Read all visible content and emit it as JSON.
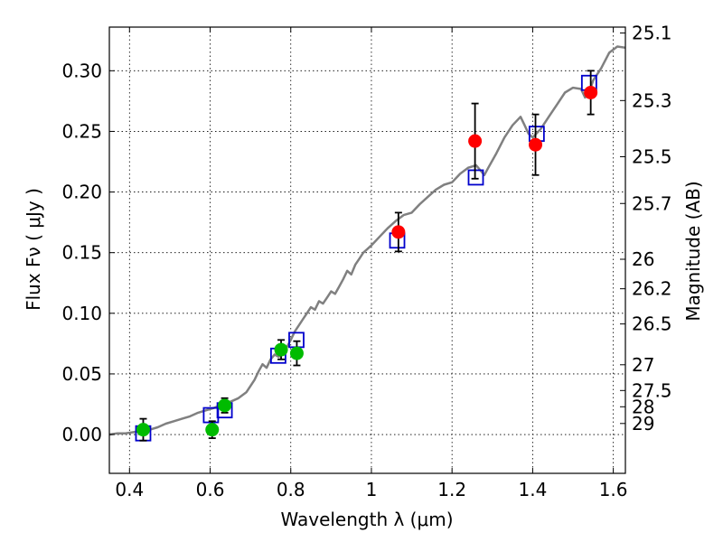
{
  "chart_data": {
    "type": "scatter",
    "title": "",
    "xlabel": "Wavelength  λ (μm)",
    "ylabel": "Flux  Fν  ( μJy )",
    "y2label": "Magnitude (AB)",
    "xlim": [
      0.35,
      1.63
    ],
    "ylim": [
      -0.032,
      0.336
    ],
    "grid": true,
    "x_ticks": [
      0.4,
      0.6,
      0.8,
      1.0,
      1.2,
      1.4,
      1.6
    ],
    "x_tick_labels": [
      "0.4",
      "0.6",
      "0.8",
      "1",
      "1.2",
      "1.4",
      "1.6"
    ],
    "y_ticks": [
      0.0,
      0.05,
      0.1,
      0.15,
      0.2,
      0.25,
      0.3
    ],
    "y_tick_labels": [
      "0.00",
      "0.05",
      "0.10",
      "0.15",
      "0.20",
      "0.25",
      "0.30"
    ],
    "mag_ticks": [
      "25.1",
      "25.3",
      "25.5",
      "25.7",
      "26",
      "26.2",
      "26.5",
      "27",
      "27.5",
      "28",
      "29"
    ],
    "colors": {
      "model": "#808080",
      "model_box": "#0000cc",
      "optical": "#00bb00",
      "nir": "#ff0000",
      "errorbar": "#000000"
    },
    "series": [
      {
        "name": "model spectrum",
        "kind": "line",
        "x": [
          0.35,
          0.37,
          0.39,
          0.41,
          0.43,
          0.45,
          0.47,
          0.49,
          0.51,
          0.53,
          0.55,
          0.57,
          0.59,
          0.61,
          0.63,
          0.65,
          0.67,
          0.69,
          0.71,
          0.72,
          0.73,
          0.74,
          0.75,
          0.76,
          0.77,
          0.78,
          0.79,
          0.8,
          0.81,
          0.82,
          0.83,
          0.84,
          0.85,
          0.86,
          0.87,
          0.88,
          0.89,
          0.9,
          0.91,
          0.92,
          0.93,
          0.94,
          0.95,
          0.96,
          0.97,
          0.98,
          0.99,
          1.0,
          1.02,
          1.04,
          1.06,
          1.08,
          1.1,
          1.12,
          1.14,
          1.16,
          1.18,
          1.2,
          1.22,
          1.24,
          1.26,
          1.28,
          1.29,
          1.31,
          1.33,
          1.35,
          1.37,
          1.38,
          1.39,
          1.4,
          1.42,
          1.44,
          1.46,
          1.48,
          1.5,
          1.52,
          1.53,
          1.54,
          1.55,
          1.57,
          1.59,
          1.61,
          1.63
        ],
        "y": [
          0.0,
          0.001,
          0.001,
          0.002,
          0.003,
          0.004,
          0.006,
          0.009,
          0.011,
          0.013,
          0.015,
          0.018,
          0.02,
          0.022,
          0.025,
          0.027,
          0.03,
          0.035,
          0.045,
          0.052,
          0.058,
          0.055,
          0.062,
          0.066,
          0.064,
          0.068,
          0.072,
          0.078,
          0.085,
          0.09,
          0.095,
          0.1,
          0.105,
          0.103,
          0.11,
          0.108,
          0.113,
          0.118,
          0.116,
          0.122,
          0.128,
          0.135,
          0.132,
          0.14,
          0.145,
          0.15,
          0.153,
          0.156,
          0.163,
          0.17,
          0.176,
          0.181,
          0.183,
          0.19,
          0.196,
          0.202,
          0.206,
          0.208,
          0.215,
          0.22,
          0.222,
          0.214,
          0.22,
          0.232,
          0.245,
          0.255,
          0.262,
          0.255,
          0.248,
          0.245,
          0.252,
          0.262,
          0.272,
          0.282,
          0.286,
          0.285,
          0.278,
          0.282,
          0.292,
          0.302,
          0.315,
          0.32,
          0.319
        ]
      },
      {
        "name": "model photometry",
        "kind": "open-square",
        "x": [
          0.434,
          0.602,
          0.636,
          0.769,
          0.814,
          1.064,
          1.259,
          1.41,
          1.54
        ],
        "y": [
          0.001,
          0.016,
          0.02,
          0.065,
          0.078,
          0.16,
          0.212,
          0.248,
          0.29
        ]
      },
      {
        "name": "optical photometry",
        "kind": "filled-circle",
        "x": [
          0.434,
          0.605,
          0.636,
          0.776,
          0.815
        ],
        "y": [
          0.004,
          0.004,
          0.024,
          0.07,
          0.067
        ],
        "yerr": [
          0.009,
          0.007,
          0.006,
          0.008,
          0.01
        ]
      },
      {
        "name": "nir photometry",
        "kind": "filled-circle",
        "x": [
          1.067,
          1.257,
          1.407,
          1.544
        ],
        "y": [
          0.167,
          0.242,
          0.239,
          0.282
        ],
        "yerr": [
          0.016,
          0.031,
          0.025,
          0.018
        ]
      }
    ]
  }
}
